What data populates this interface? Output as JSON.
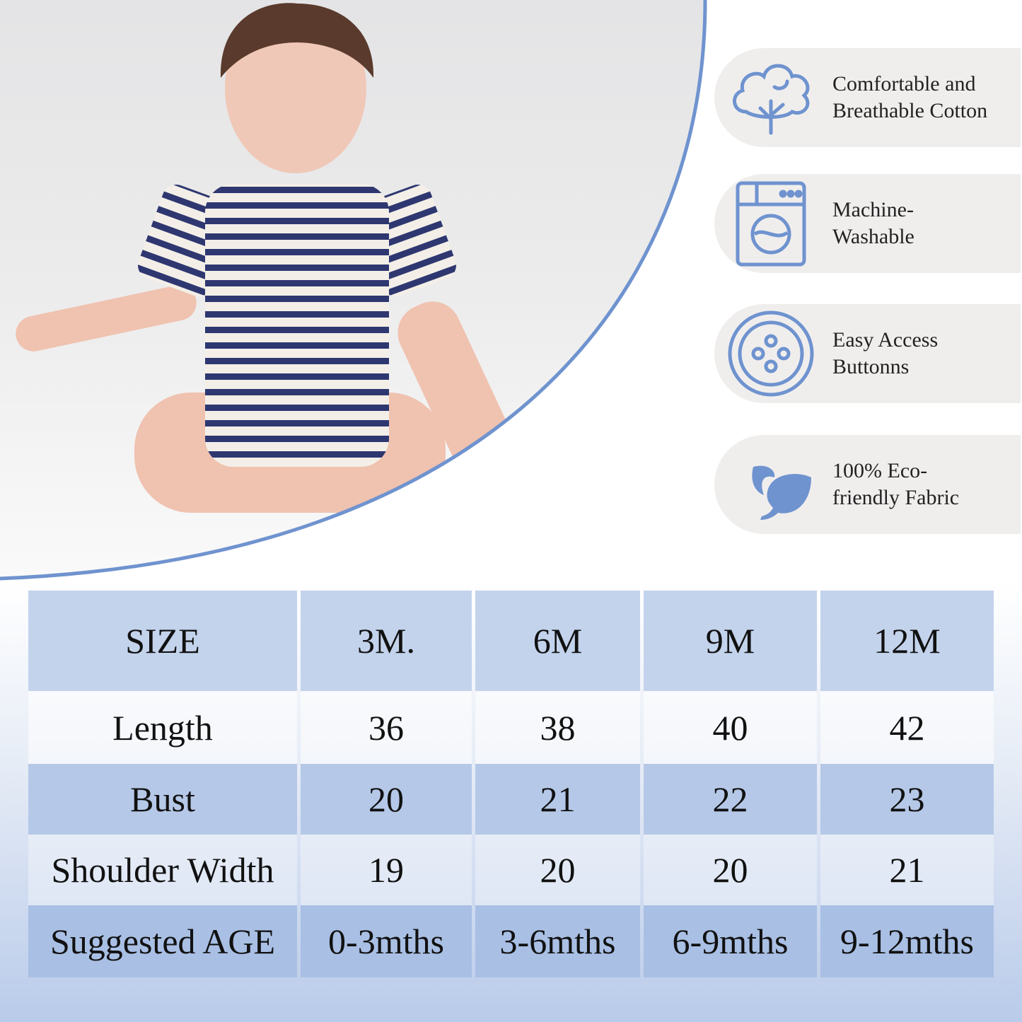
{
  "features": [
    {
      "icon": "cotton-icon",
      "text": "Comfortable and\nBreathable Cotton"
    },
    {
      "icon": "washing-machine-icon",
      "text": "Machine-\nWashable"
    },
    {
      "icon": "button-icon",
      "text": "Easy Access\nButtonns"
    },
    {
      "icon": "leaf-icon",
      "text": "100% Eco-\nfriendly Fabric"
    }
  ],
  "colors": {
    "accent": "#6f93cf",
    "header": "#c3d3ec",
    "pill": "#f0eeed"
  },
  "size_table": {
    "header": [
      "SIZE",
      "3M.",
      "6M",
      "9M",
      "12M"
    ],
    "rows": [
      [
        "Length",
        "36",
        "38",
        "40",
        "42"
      ],
      [
        "Bust",
        "20",
        "21",
        "22",
        "23"
      ],
      [
        "Shoulder Width",
        "19",
        "20",
        "20",
        "21"
      ],
      [
        "Suggested AGE",
        "0-3mths",
        "3-6mths",
        "6-9mths",
        "9-12mths"
      ]
    ]
  }
}
